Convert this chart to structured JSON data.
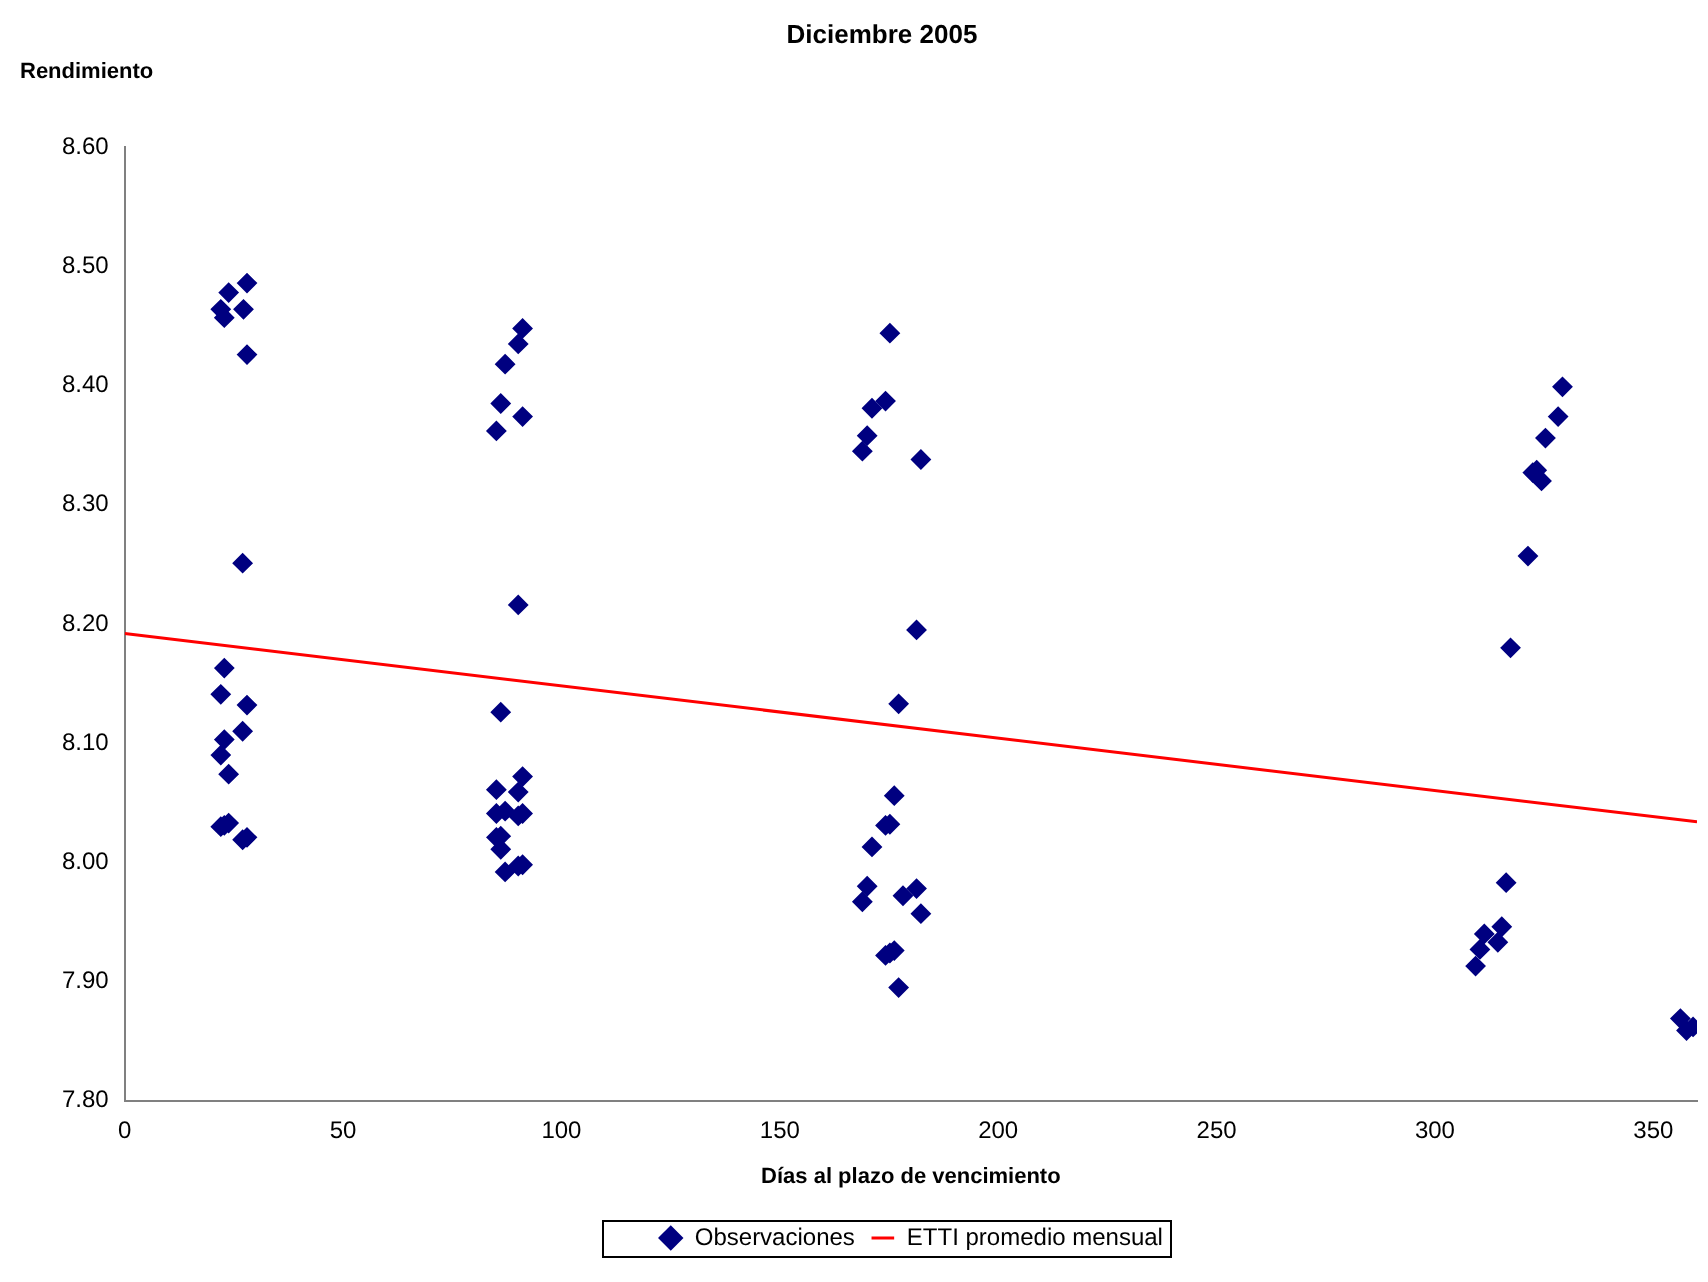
{
  "chart_data": {
    "type": "scatter",
    "title": "Diciembre 2005",
    "xlabel": "Días al plazo de vencimiento",
    "ylabel": "Rendimiento",
    "xlim": [
      0,
      360
    ],
    "xticks": [
      0,
      50,
      100,
      150,
      200,
      250,
      300,
      350
    ],
    "ylim": [
      7.8,
      8.6
    ],
    "yticks": [
      {
        "value": 7.8,
        "label": "7.80"
      },
      {
        "value": 7.9,
        "label": "7.90"
      },
      {
        "value": 8.0,
        "label": "8.00"
      },
      {
        "value": 8.1,
        "label": "8.10"
      },
      {
        "value": 8.2,
        "label": "8.20"
      },
      {
        "value": 8.3,
        "label": "8.30"
      },
      {
        "value": 8.4,
        "label": "8.40"
      },
      {
        "value": 8.5,
        "label": "8.50"
      },
      {
        "value": 8.6,
        "label": "8.60"
      }
    ],
    "grid": false,
    "legend": "bottom",
    "marker": "diamond",
    "series": [
      {
        "name": "Observaciones",
        "color": "#000080",
        "x": [
          22.0,
          22.8,
          23.8,
          28.0,
          27.2,
          28.0,
          27.0,
          22.8,
          22.0,
          28.0,
          22.8,
          27.0,
          22.0,
          23.8,
          22.0,
          22.8,
          23.8,
          27.0,
          28.0,
          91.1,
          90.1,
          87.1,
          86.1,
          85.1,
          91.1,
          90.1,
          86.1,
          85.1,
          91.1,
          90.1,
          85.1,
          87.1,
          90.1,
          91.1,
          85.1,
          86.1,
          86.1,
          87.1,
          90.1,
          91.1,
          175.2,
          174.2,
          171.1,
          170.0,
          168.9,
          182.3,
          181.3,
          177.2,
          176.2,
          174.2,
          175.2,
          171.1,
          170.0,
          168.9,
          178.2,
          181.3,
          182.3,
          174.2,
          176.2,
          175.2,
          177.2,
          329.2,
          328.2,
          325.3,
          322.4,
          323.3,
          324.4,
          321.3,
          317.3,
          316.3,
          315.3,
          314.4,
          311.3,
          310.3,
          309.3,
          356.2,
          357.6,
          359.1
        ],
        "values": [
          8.464,
          8.457,
          8.478,
          8.486,
          8.464,
          8.426,
          8.251,
          8.163,
          8.141,
          8.132,
          8.103,
          8.11,
          8.09,
          8.074,
          8.03,
          8.031,
          8.033,
          8.019,
          8.021,
          8.448,
          8.435,
          8.418,
          8.385,
          8.362,
          8.374,
          8.216,
          8.126,
          8.061,
          8.072,
          8.059,
          8.041,
          8.043,
          8.039,
          8.041,
          8.021,
          8.022,
          8.011,
          7.992,
          7.997,
          7.998,
          8.444,
          8.387,
          8.381,
          8.358,
          8.345,
          8.338,
          8.195,
          8.133,
          8.056,
          8.031,
          8.032,
          8.013,
          7.98,
          7.967,
          7.972,
          7.978,
          7.957,
          7.922,
          7.926,
          7.924,
          7.895,
          8.399,
          8.374,
          8.356,
          8.327,
          8.329,
          8.32,
          8.257,
          8.18,
          7.983,
          7.946,
          7.933,
          7.94,
          7.927,
          7.913,
          7.869,
          7.859,
          7.862
        ]
      },
      {
        "name": "ETTI promedio mensual",
        "type": "line",
        "color": "#ff0000",
        "marker": "none",
        "line_style": "solid",
        "x": [
          0,
          360
        ],
        "values": [
          8.192,
          8.034
        ]
      }
    ]
  }
}
